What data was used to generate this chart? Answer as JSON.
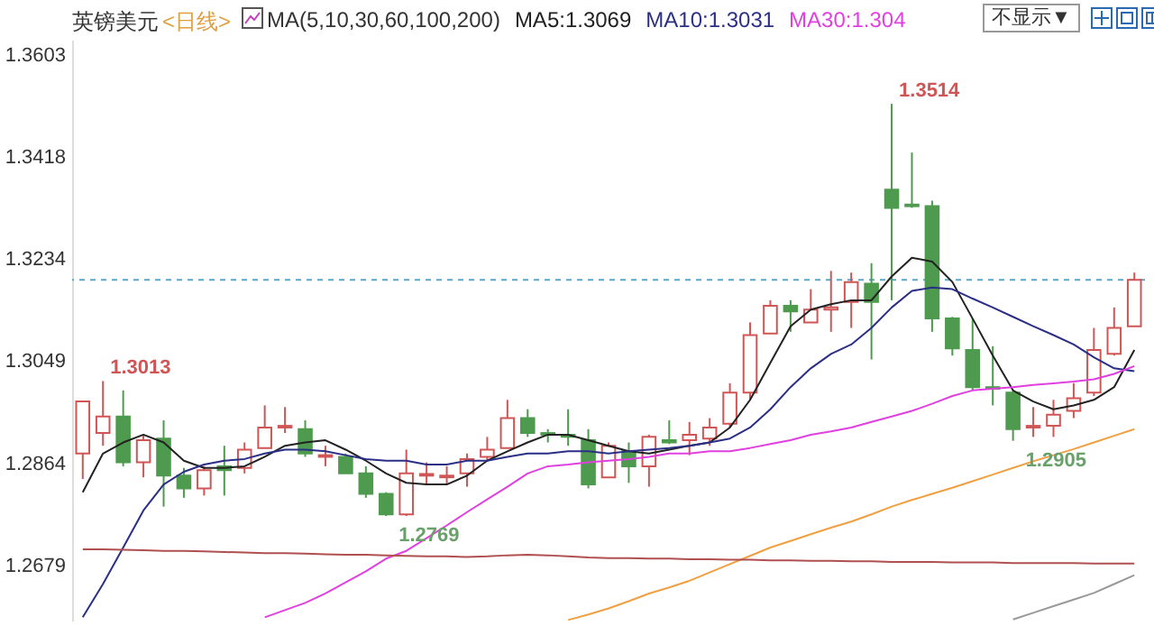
{
  "chart_data": {
    "type": "candlestick",
    "title": "英镑美元",
    "subtitle": "<日线>",
    "annotations": [
      "MA(5,10,30,60,100,200)",
      "不显示▼",
      "1.3013",
      "1.3514",
      "1.2769",
      "1.2905"
    ],
    "legend": "top",
    "categories": [
      null,
      null,
      null,
      null,
      null,
      null,
      null,
      null,
      null,
      null,
      null,
      null,
      null,
      null,
      null,
      null,
      null,
      null,
      null,
      null,
      null,
      null,
      null,
      null,
      null,
      null,
      null,
      null,
      null,
      null,
      null,
      null,
      null,
      null,
      null,
      null,
      null,
      null,
      null,
      null,
      null,
      null,
      null,
      null,
      null,
      null,
      null,
      null,
      null,
      null,
      null,
      null,
      null
    ],
    "ohlc": [
      [
        1.2882,
        1.2976,
        1.2836,
        1.2976
      ],
      [
        1.2919,
        1.3013,
        1.2896,
        1.2949
      ],
      [
        1.2949,
        1.2996,
        1.2859,
        1.2866
      ],
      [
        1.2866,
        1.2916,
        1.2839,
        1.2906
      ],
      [
        1.2909,
        1.2942,
        1.2786,
        1.2842
      ],
      [
        1.2842,
        1.2856,
        1.2802,
        1.2819
      ],
      [
        1.2819,
        1.2859,
        1.2806,
        1.2852
      ],
      [
        1.2859,
        1.2896,
        1.2806,
        1.2852
      ],
      [
        1.2856,
        1.2902,
        1.2846,
        1.2889
      ],
      [
        1.2892,
        1.2969,
        1.2892,
        1.2929
      ],
      [
        1.2929,
        1.2966,
        1.2919,
        1.2932
      ],
      [
        1.2926,
        1.2942,
        1.2876,
        1.2882
      ],
      [
        1.2876,
        1.2896,
        1.2859,
        1.2879
      ],
      [
        1.2876,
        1.2882,
        1.2846,
        1.2846
      ],
      [
        1.2846,
        1.2859,
        1.2802,
        1.2809
      ],
      [
        1.2809,
        1.2812,
        1.2769,
        1.2772
      ],
      [
        1.2772,
        1.2889,
        1.2769,
        1.2846
      ],
      [
        1.2842,
        1.2866,
        1.2826,
        1.2845
      ],
      [
        1.2839,
        1.2859,
        1.2826,
        1.2842
      ],
      [
        1.2846,
        1.2882,
        1.2822,
        1.2872
      ],
      [
        1.2876,
        1.2912,
        1.2869,
        1.2889
      ],
      [
        1.2892,
        1.2979,
        1.2892,
        1.2946
      ],
      [
        1.2946,
        1.2962,
        1.2912,
        1.2919
      ],
      [
        1.2919,
        1.2926,
        1.2902,
        1.2916
      ],
      [
        1.2916,
        1.2962,
        1.2896,
        1.2912
      ],
      [
        1.2906,
        1.2926,
        1.2819,
        1.2826
      ],
      [
        1.2839,
        1.2902,
        1.2839,
        1.2896
      ],
      [
        1.2886,
        1.2902,
        1.2829,
        1.2859
      ],
      [
        1.2859,
        1.2916,
        1.2822,
        1.2912
      ],
      [
        1.2906,
        1.2942,
        1.2899,
        1.2902
      ],
      [
        1.2906,
        1.2939,
        1.2879,
        1.2916
      ],
      [
        1.2909,
        1.2946,
        1.2896,
        1.2929
      ],
      [
        1.2936,
        1.3009,
        1.2929,
        1.2992
      ],
      [
        1.2992,
        1.3119,
        1.2979,
        1.3096
      ],
      [
        1.3099,
        1.3159,
        1.3099,
        1.3149
      ],
      [
        1.3149,
        1.3159,
        1.3102,
        1.3139
      ],
      [
        1.3119,
        1.3179,
        1.3119,
        1.3142
      ],
      [
        1.3142,
        1.3212,
        1.3102,
        1.3146
      ],
      [
        1.3156,
        1.3209,
        1.3109,
        1.3192
      ],
      [
        1.3189,
        1.3226,
        1.3052,
        1.3156
      ],
      [
        1.3359,
        1.3514,
        1.3159,
        1.3326
      ],
      [
        1.3332,
        1.3426,
        1.3326,
        1.3329
      ],
      [
        1.3329,
        1.3339,
        1.3102,
        1.3126
      ],
      [
        1.3126,
        1.3129,
        1.3059,
        1.3072
      ],
      [
        1.3069,
        1.3126,
        1.2996,
        1.3002
      ],
      [
        1.3002,
        1.3076,
        1.2969,
        1.2999
      ],
      [
        1.2992,
        1.2996,
        1.2905,
        1.2926
      ],
      [
        1.2929,
        1.2966,
        1.2912,
        1.2932
      ],
      [
        1.2932,
        1.2979,
        1.2912,
        1.2952
      ],
      [
        1.2959,
        1.3009,
        1.2946,
        1.2982
      ],
      [
        1.2992,
        1.3109,
        1.2986,
        1.3069
      ],
      [
        1.3062,
        1.3146,
        1.3059,
        1.3109
      ],
      [
        1.3112,
        1.3209,
        1.3112,
        1.3196
      ]
    ],
    "series": [
      {
        "name": "MA5:1.3069",
        "type": "line",
        "color": "#222222",
        "values": [
          1.2812,
          1.2882,
          1.2902,
          1.2916,
          1.2902,
          1.2869,
          1.2856,
          1.2856,
          1.2859,
          1.2876,
          1.2896,
          1.2902,
          1.2906,
          1.2889,
          1.2869,
          1.2846,
          1.2829,
          1.2826,
          1.2826,
          1.2842,
          1.2869,
          1.2886,
          1.2902,
          1.2916,
          1.2916,
          1.2906,
          1.2896,
          1.2886,
          1.2882,
          1.2889,
          1.2896,
          1.2902,
          1.2929,
          1.2979,
          1.3046,
          1.3112,
          1.3142,
          1.3152,
          1.3159,
          1.3159,
          1.3202,
          1.3236,
          1.3229,
          1.3192,
          1.3126,
          1.3059,
          1.2996,
          1.2976,
          1.2962,
          1.2969,
          1.2979,
          1.3002,
          1.3069
        ]
      },
      {
        "name": "MA10:1.3031",
        "type": "line",
        "color": "#2b2f86",
        "values": [
          1.2586,
          1.2646,
          1.2712,
          1.2779,
          1.2826,
          1.2849,
          1.2862,
          1.2869,
          1.2872,
          1.2882,
          1.2889,
          1.2889,
          1.2886,
          1.2879,
          1.2872,
          1.2869,
          1.2869,
          1.2862,
          1.2862,
          1.2869,
          1.2869,
          1.2876,
          1.2882,
          1.2882,
          1.2886,
          1.2886,
          1.2882,
          1.2886,
          1.2889,
          1.2892,
          1.2896,
          1.2902,
          1.2909,
          1.2929,
          1.2962,
          1.3002,
          1.3036,
          1.3062,
          1.3079,
          1.3109,
          1.3146,
          1.3176,
          1.3182,
          1.3179,
          1.3162,
          1.3146,
          1.3129,
          1.3112,
          1.3096,
          1.3079,
          1.3056,
          1.3036,
          1.3031
        ]
      },
      {
        "name": "MA30:1.304",
        "type": "line",
        "color": "#e040e0",
        "values": [
          null,
          null,
          null,
          null,
          null,
          null,
          null,
          null,
          null,
          1.2586,
          1.2599,
          1.2612,
          1.2629,
          1.2649,
          1.2669,
          1.2692,
          1.2706,
          1.2729,
          1.2752,
          1.2776,
          1.2799,
          1.2822,
          1.2846,
          1.2859,
          1.2862,
          1.2866,
          1.2869,
          1.2872,
          1.2876,
          1.2882,
          1.2882,
          1.2886,
          1.2886,
          1.2892,
          1.2899,
          1.2906,
          1.2916,
          1.2922,
          1.2929,
          1.2939,
          1.2949,
          1.2959,
          1.2972,
          1.2986,
          1.2996,
          1.2999,
          1.3002,
          1.3006,
          1.3009,
          1.3012,
          1.3016,
          1.3026,
          1.304
        ]
      },
      {
        "type": "line",
        "color": "#f0a040",
        "values": [
          null,
          null,
          null,
          null,
          null,
          null,
          null,
          null,
          null,
          null,
          null,
          null,
          null,
          null,
          null,
          null,
          null,
          null,
          null,
          null,
          null,
          null,
          null,
          null,
          1.2581,
          1.2591,
          1.2602,
          1.2615,
          1.2629,
          1.264,
          1.2652,
          1.2667,
          1.2682,
          1.2697,
          1.2712,
          1.2724,
          1.2736,
          1.2748,
          1.2759,
          1.2772,
          1.2786,
          1.2798,
          1.2809,
          1.282,
          1.2832,
          1.2844,
          1.2856,
          1.2868,
          1.2879,
          1.289,
          1.2902,
          1.2914,
          1.2926
        ]
      },
      {
        "type": "line",
        "color": "#b05050",
        "values": [
          1.2709,
          1.2709,
          1.2708,
          1.2707,
          1.2706,
          1.2706,
          1.2705,
          1.2704,
          1.2703,
          1.2702,
          1.2702,
          1.2701,
          1.27,
          1.2699,
          1.2699,
          1.2698,
          1.2697,
          1.2696,
          1.2696,
          1.2695,
          1.2696,
          1.2698,
          1.2699,
          1.2698,
          1.2696,
          1.2694,
          1.2693,
          1.2693,
          1.2692,
          1.2692,
          1.2691,
          1.2691,
          1.269,
          1.269,
          1.2689,
          1.2689,
          1.2688,
          1.2688,
          1.2687,
          1.2687,
          1.2686,
          1.2686,
          1.2686,
          1.2685,
          1.2685,
          1.2685,
          1.2684,
          1.2684,
          1.2684,
          1.2684,
          1.2683,
          1.2683,
          1.2683
        ]
      },
      {
        "type": "line",
        "color": "#999999",
        "values": [
          null,
          null,
          null,
          null,
          null,
          null,
          null,
          null,
          null,
          null,
          null,
          null,
          null,
          null,
          null,
          null,
          null,
          null,
          null,
          null,
          null,
          null,
          null,
          null,
          null,
          null,
          null,
          null,
          null,
          null,
          null,
          null,
          null,
          null,
          null,
          null,
          null,
          null,
          null,
          null,
          null,
          null,
          null,
          null,
          null,
          null,
          1.2582,
          1.2594,
          1.2606,
          1.2618,
          1.263,
          1.2646,
          1.2662
        ]
      }
    ],
    "ylim": [
      1.258,
      1.363
    ],
    "yticks": [
      1.2679,
      1.2864,
      1.3049,
      1.3234,
      1.3418,
      1.3603
    ],
    "ref_lines": [
      {
        "axis": "y",
        "value": 1.3196,
        "color": "#5aa7c7",
        "line_style": "dashed"
      }
    ]
  }
}
